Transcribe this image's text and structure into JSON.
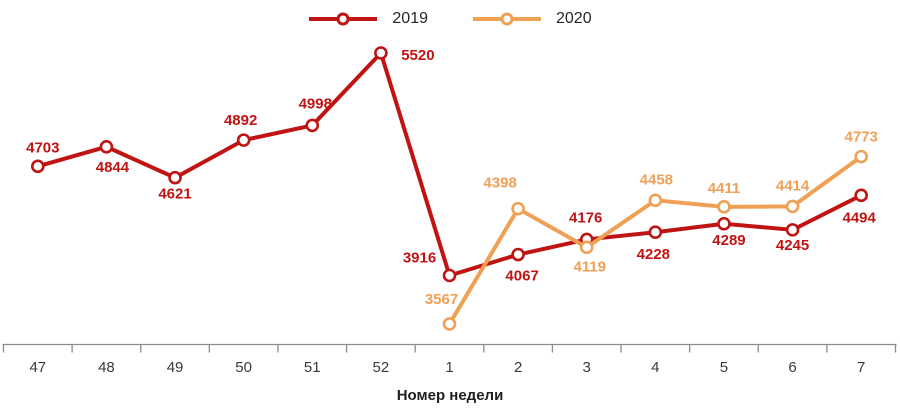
{
  "chart_data": {
    "type": "line",
    "title": "",
    "xlabel": "Номер недели",
    "ylabel": "",
    "categories": [
      "47",
      "48",
      "49",
      "50",
      "51",
      "52",
      "1",
      "2",
      "3",
      "4",
      "5",
      "6",
      "7"
    ],
    "series": [
      {
        "name": "2019",
        "color": "#C01414",
        "start_index": 0,
        "values": [
          4703,
          4844,
          4621,
          4892,
          4998,
          5520,
          3916,
          4067,
          4176,
          4228,
          4289,
          4245,
          4494
        ],
        "label_offsets": [
          [
            5,
            -19
          ],
          [
            6,
            20
          ],
          [
            0,
            16
          ],
          [
            -3,
            -20
          ],
          [
            3,
            -22
          ],
          [
            37,
            2
          ],
          [
            -30,
            -18
          ],
          [
            4,
            21
          ],
          [
            -1,
            -22
          ],
          [
            -2,
            22
          ],
          [
            5,
            16
          ],
          [
            0,
            15
          ],
          [
            -2,
            22
          ]
        ]
      },
      {
        "name": "2020",
        "color": "#F0A055",
        "start_index": 6,
        "values": [
          3567,
          4398,
          4119,
          4458,
          4411,
          4414,
          4773
        ],
        "label_offsets": [
          [
            -8,
            -25
          ],
          [
            -18,
            -26
          ],
          [
            3,
            19
          ],
          [
            1,
            -21
          ],
          [
            0,
            -19
          ],
          [
            0,
            -21
          ],
          [
            0,
            -20
          ]
        ]
      }
    ],
    "ylim": [
      3415,
      5830
    ],
    "grid": false,
    "legend_position": "top-center",
    "axis_color": "#8C8C8C",
    "tick_label_color": "#3A3A3A",
    "markers": "open-circle"
  }
}
